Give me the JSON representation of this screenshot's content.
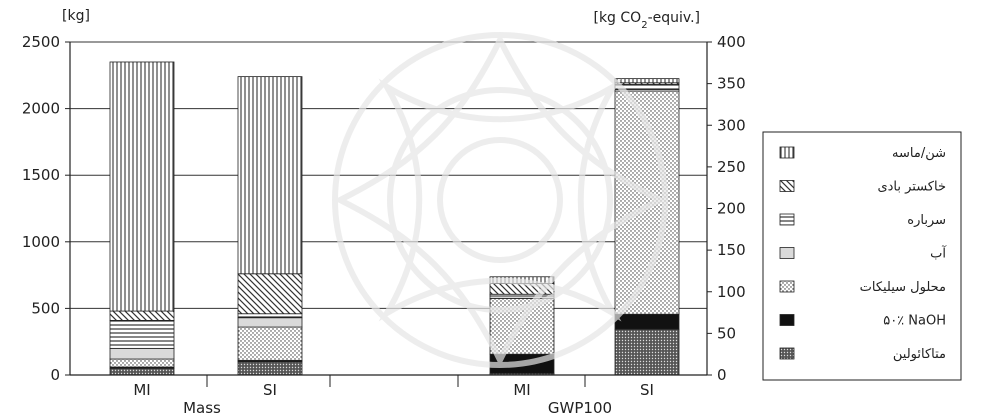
{
  "chart_data": {
    "type": "bar",
    "stacked": true,
    "left_axis": {
      "unit_label": "[kg]",
      "ylim": [
        0,
        2500
      ],
      "ticks": [
        "0",
        "500",
        "1000",
        "1500",
        "2000",
        "2500"
      ]
    },
    "right_axis": {
      "unit_label_prefix": "[kg CO",
      "unit_label_sub": "2",
      "unit_label_suffix": "-equiv.]",
      "ylim": [
        0,
        400
      ],
      "ticks": [
        "0",
        "50",
        "100",
        "150",
        "200",
        "250",
        "300",
        "350",
        "400"
      ]
    },
    "groups": [
      {
        "label": "Mass",
        "axis": "left",
        "categories": [
          "MI",
          "SI"
        ]
      },
      {
        "label": "GWP100",
        "axis": "right",
        "categories": [
          "MI",
          "SI"
        ]
      }
    ],
    "legend": [
      {
        "label": "شن/ماسه",
        "pattern": "vlines"
      },
      {
        "label": "خاکستر بادی",
        "pattern": "diag"
      },
      {
        "label": "سرباره",
        "pattern": "hlines"
      },
      {
        "label": "آب",
        "pattern": "light"
      },
      {
        "label": "محلول سیلیکات",
        "pattern": "dots"
      },
      {
        "label": "۵۰٪ NaOH",
        "pattern": "black"
      },
      {
        "label": "متاکائولین",
        "pattern": "dense"
      }
    ],
    "legend_position": "right",
    "grid": "horizontal",
    "series_order_bottom_to_top": [
      "dense",
      "black",
      "dots",
      "light",
      "hlines",
      "diag",
      "vlines"
    ],
    "bars": [
      {
        "group": "Mass",
        "category": "MI",
        "segments": {
          "dense": 50,
          "black": 10,
          "dots": 60,
          "light": 80,
          "hlines": 210,
          "diag": 70,
          "vlines": 1870
        }
      },
      {
        "group": "Mass",
        "category": "SI",
        "segments": {
          "dense": 100,
          "black": 10,
          "dots": 250,
          "light": 70,
          "hlines": 30,
          "diag": 300,
          "vlines": 1480
        }
      },
      {
        "group": "GWP100",
        "category": "MI",
        "segments": {
          "dense": 2,
          "black": 23,
          "dots": 67,
          "light": 3,
          "hlines": 2,
          "diag": 13,
          "vlines": 8
        }
      },
      {
        "group": "GWP100",
        "category": "SI",
        "segments": {
          "dense": 55,
          "black": 18,
          "dots": 268,
          "light": 2,
          "hlines": 6,
          "diag": 2,
          "vlines": 5
        }
      }
    ]
  }
}
